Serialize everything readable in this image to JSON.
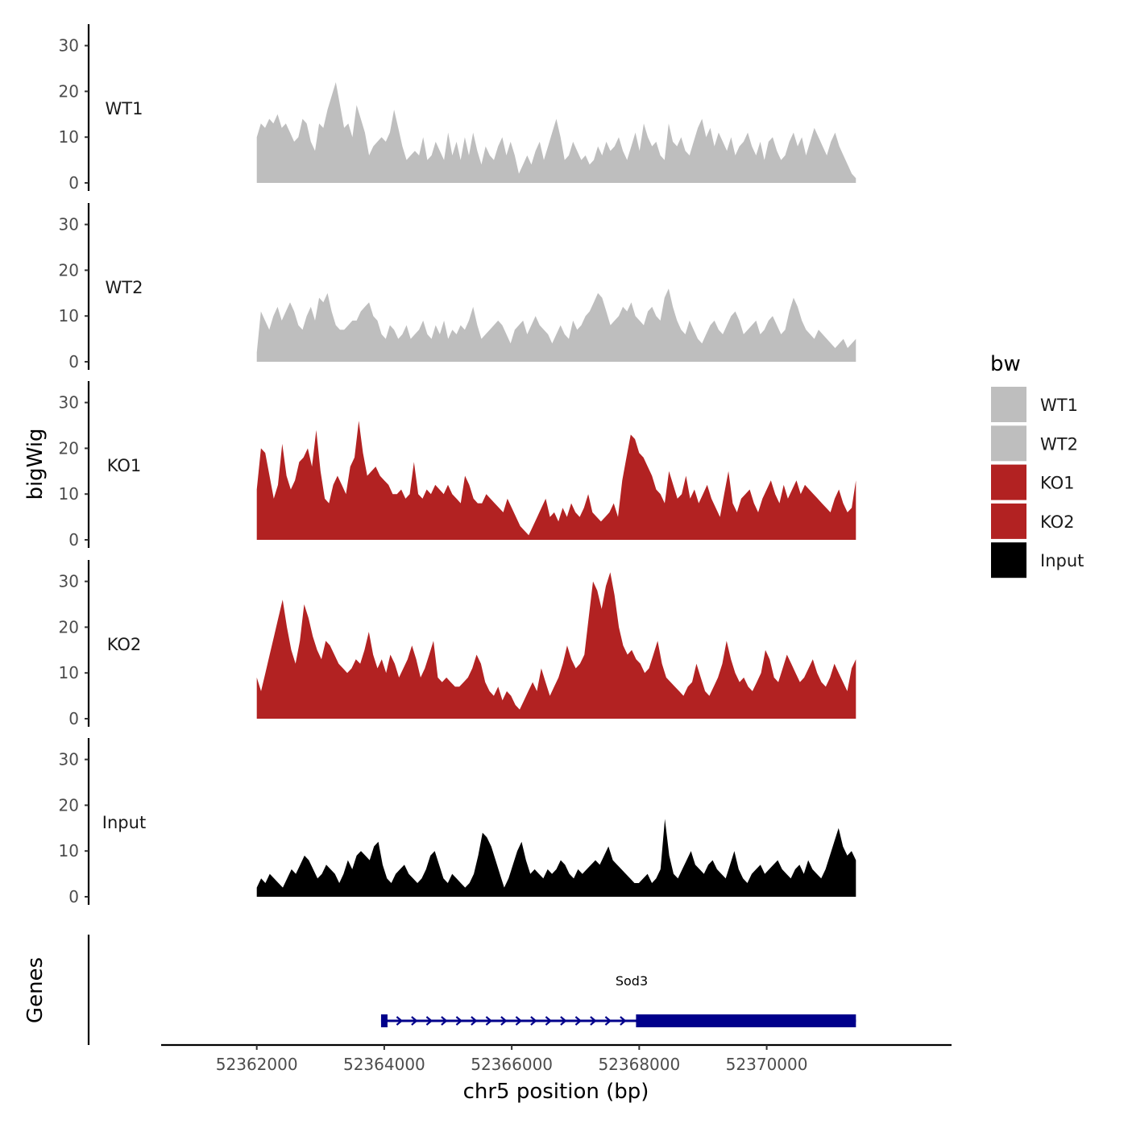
{
  "chart_data": {
    "type": "area",
    "ylabel": "bigWig",
    "xlabel": "chr5 position (bp)",
    "xlim": [
      52360500,
      52372900
    ],
    "ylim": [
      0,
      33
    ],
    "yticks": [
      0,
      10,
      20,
      30
    ],
    "xticks": [
      52362000,
      52364000,
      52366000,
      52368000,
      52370000
    ],
    "x_start": 52362000,
    "x_end": 52371400,
    "series": [
      {
        "name": "WT1",
        "color": "#bebebe",
        "values": [
          10,
          13,
          12,
          14,
          13,
          15,
          12,
          13,
          11,
          9,
          10,
          14,
          13,
          9,
          7,
          13,
          12,
          16,
          19,
          22,
          17,
          12,
          13,
          10,
          17,
          14,
          11,
          6,
          8,
          9,
          10,
          9,
          11,
          16,
          12,
          8,
          5,
          6,
          7,
          6,
          10,
          5,
          6,
          9,
          7,
          5,
          11,
          6,
          9,
          5,
          10,
          6,
          11,
          7,
          4,
          8,
          6,
          5,
          8,
          10,
          6,
          9,
          6,
          2,
          4,
          6,
          4,
          7,
          9,
          5,
          8,
          11,
          14,
          10,
          5,
          6,
          9,
          7,
          5,
          6,
          4,
          5,
          8,
          6,
          9,
          7,
          8,
          10,
          7,
          5,
          8,
          11,
          7,
          13,
          10,
          8,
          9,
          6,
          5,
          13,
          9,
          8,
          10,
          7,
          6,
          9,
          12,
          14,
          10,
          12,
          8,
          11,
          9,
          7,
          10,
          6,
          8,
          9,
          11,
          8,
          6,
          9,
          5,
          9,
          10,
          7,
          5,
          6,
          9,
          11,
          8,
          10,
          6,
          9,
          12,
          10,
          8,
          6,
          9,
          11,
          8,
          6,
          4,
          2,
          1
        ]
      },
      {
        "name": "WT2",
        "color": "#bebebe",
        "values": [
          2,
          11,
          9,
          7,
          10,
          12,
          9,
          11,
          13,
          11,
          8,
          7,
          10,
          12,
          9,
          14,
          13,
          15,
          11,
          8,
          7,
          7,
          8,
          9,
          9,
          11,
          12,
          13,
          10,
          9,
          6,
          5,
          8,
          7,
          5,
          6,
          8,
          5,
          6,
          7,
          9,
          6,
          5,
          8,
          6,
          9,
          5,
          7,
          6,
          8,
          7,
          9,
          12,
          8,
          5,
          6,
          7,
          8,
          9,
          8,
          6,
          4,
          7,
          8,
          9,
          6,
          8,
          10,
          8,
          7,
          6,
          4,
          6,
          8,
          6,
          5,
          9,
          7,
          8,
          10,
          11,
          13,
          15,
          14,
          11,
          8,
          9,
          10,
          12,
          11,
          13,
          10,
          9,
          8,
          11,
          12,
          10,
          9,
          14,
          16,
          12,
          9,
          7,
          6,
          9,
          7,
          5,
          4,
          6,
          8,
          9,
          7,
          6,
          8,
          10,
          11,
          9,
          6,
          7,
          8,
          9,
          6,
          7,
          9,
          10,
          8,
          6,
          7,
          11,
          14,
          12,
          9,
          7,
          6,
          5,
          7,
          6,
          5,
          4,
          3,
          4,
          5,
          3,
          4,
          5
        ]
      },
      {
        "name": "KO1",
        "color": "#b22222",
        "values": [
          11,
          20,
          19,
          14,
          9,
          12,
          21,
          14,
          11,
          13,
          17,
          18,
          20,
          16,
          24,
          15,
          9,
          8,
          12,
          14,
          12,
          10,
          16,
          18,
          26,
          19,
          14,
          15,
          16,
          14,
          13,
          12,
          10,
          10,
          11,
          9,
          10,
          17,
          10,
          9,
          11,
          10,
          12,
          11,
          10,
          12,
          10,
          9,
          8,
          14,
          12,
          9,
          8,
          8,
          10,
          9,
          8,
          7,
          6,
          9,
          7,
          5,
          3,
          2,
          1,
          3,
          5,
          7,
          9,
          5,
          6,
          4,
          7,
          5,
          8,
          6,
          5,
          7,
          10,
          6,
          5,
          4,
          5,
          6,
          8,
          5,
          13,
          18,
          23,
          22,
          19,
          18,
          16,
          14,
          11,
          10,
          8,
          15,
          12,
          9,
          10,
          14,
          9,
          11,
          8,
          10,
          12,
          9,
          7,
          5,
          10,
          15,
          8,
          6,
          9,
          10,
          11,
          8,
          6,
          9,
          11,
          13,
          10,
          8,
          12,
          9,
          11,
          13,
          10,
          12,
          11,
          10,
          9,
          8,
          7,
          6,
          9,
          11,
          8,
          6,
          7,
          13
        ]
      },
      {
        "name": "KO2",
        "color": "#b22222",
        "values": [
          9,
          6,
          10,
          14,
          18,
          22,
          26,
          20,
          15,
          12,
          17,
          25,
          22,
          18,
          15,
          13,
          17,
          16,
          14,
          12,
          11,
          10,
          11,
          13,
          12,
          15,
          19,
          14,
          11,
          13,
          10,
          14,
          12,
          9,
          11,
          13,
          16,
          13,
          9,
          11,
          14,
          17,
          9,
          8,
          9,
          8,
          7,
          7,
          8,
          9,
          11,
          14,
          12,
          8,
          6,
          5,
          7,
          4,
          6,
          5,
          3,
          2,
          4,
          6,
          8,
          6,
          11,
          8,
          5,
          7,
          9,
          12,
          16,
          13,
          11,
          12,
          14,
          22,
          30,
          28,
          24,
          29,
          32,
          27,
          20,
          16,
          14,
          15,
          13,
          12,
          10,
          11,
          14,
          17,
          12,
          9,
          8,
          7,
          6,
          5,
          7,
          8,
          12,
          9,
          6,
          5,
          7,
          9,
          12,
          17,
          13,
          10,
          8,
          9,
          7,
          6,
          8,
          10,
          15,
          13,
          9,
          8,
          11,
          14,
          12,
          10,
          8,
          9,
          11,
          13,
          10,
          8,
          7,
          9,
          12,
          10,
          8,
          6,
          11,
          13
        ]
      },
      {
        "name": "Input",
        "color": "#000000",
        "values": [
          2,
          4,
          3,
          5,
          4,
          3,
          2,
          4,
          6,
          5,
          7,
          9,
          8,
          6,
          4,
          5,
          7,
          6,
          5,
          3,
          5,
          8,
          6,
          9,
          10,
          9,
          8,
          11,
          12,
          7,
          4,
          3,
          5,
          6,
          7,
          5,
          4,
          3,
          4,
          6,
          9,
          10,
          7,
          4,
          3,
          5,
          4,
          3,
          2,
          3,
          5,
          9,
          14,
          13,
          11,
          8,
          5,
          2,
          4,
          7,
          10,
          12,
          8,
          5,
          6,
          5,
          4,
          6,
          5,
          6,
          8,
          7,
          5,
          4,
          6,
          5,
          6,
          7,
          8,
          7,
          9,
          11,
          8,
          7,
          6,
          5,
          4,
          3,
          3,
          4,
          5,
          3,
          4,
          6,
          17,
          9,
          5,
          4,
          6,
          8,
          10,
          7,
          6,
          5,
          7,
          8,
          6,
          5,
          4,
          7,
          10,
          6,
          4,
          3,
          5,
          6,
          7,
          5,
          6,
          7,
          8,
          6,
          5,
          4,
          6,
          7,
          5,
          8,
          6,
          5,
          4,
          6,
          9,
          12,
          15,
          11,
          9,
          10,
          8
        ]
      }
    ],
    "legend": {
      "title": "bw",
      "position": "right",
      "entries": [
        "WT1",
        "WT2",
        "KO1",
        "KO2",
        "Input"
      ]
    },
    "gene_track": {
      "label": "Genes",
      "gene": "Sod3",
      "color": "#00008b",
      "start": 52362000,
      "end": 52371400,
      "tx_start": 52363950,
      "tx_end": 52371400,
      "exon1": [
        52363950,
        52364050
      ],
      "exon2": [
        52367950,
        52371400
      ],
      "strand": "+"
    }
  }
}
